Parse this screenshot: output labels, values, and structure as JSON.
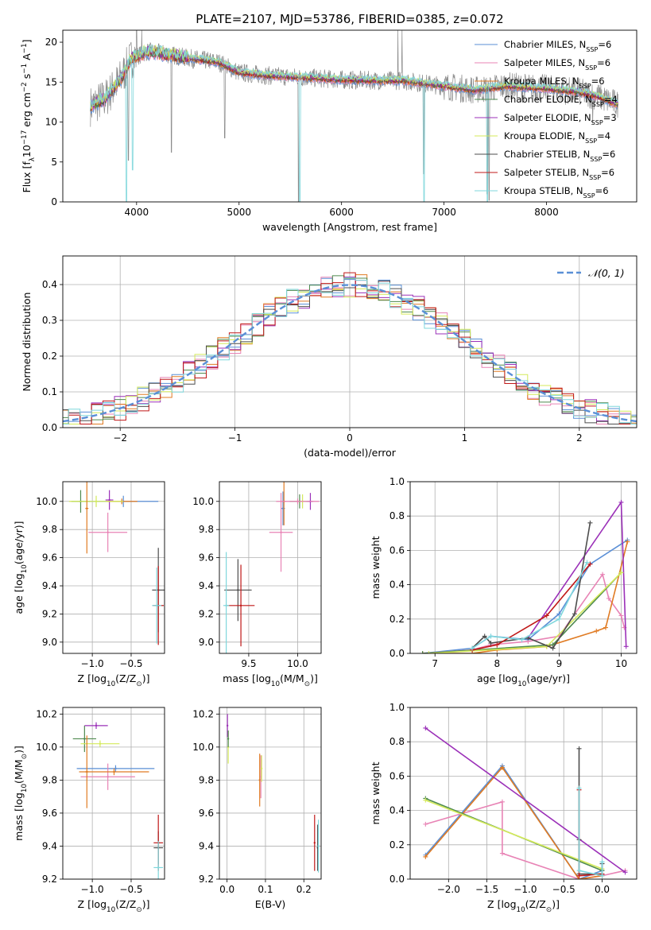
{
  "figure_title": "PLATE=2107, MJD=53786, FIBERID=0385, z=0.072",
  "series": [
    {
      "name": "Chabrier MILES, N",
      "sub": "SSP",
      "tail": "=6",
      "color": "#5a8fd6"
    },
    {
      "name": "Salpeter MILES, N",
      "sub": "SSP",
      "tail": "=6",
      "color": "#e883b5"
    },
    {
      "name": "Kroupa MILES, N",
      "sub": "SSP",
      "tail": "=6",
      "color": "#e07b23"
    },
    {
      "name": "Chabrier ELODIE, N",
      "sub": "SSP",
      "tail": "=4",
      "color": "#4f8a4f"
    },
    {
      "name": "Salpeter ELODIE, N",
      "sub": "SSP",
      "tail": "=3",
      "color": "#9b30b8"
    },
    {
      "name": "Kroupa ELODIE, N",
      "sub": "SSP",
      "tail": "=4",
      "color": "#d4ea5a"
    },
    {
      "name": "Chabrier STELIB, N",
      "sub": "SSP",
      "tail": "=6",
      "color": "#4d4d4d"
    },
    {
      "name": "Salpeter STELIB, N",
      "sub": "SSP",
      "tail": "=6",
      "color": "#c01818"
    },
    {
      "name": "Kroupa STELIB, N",
      "sub": "SSP",
      "tail": "=6",
      "color": "#7fd7dc"
    }
  ],
  "data_color": "#8a8a8a",
  "chart_data": [
    {
      "type": "line",
      "id": "spectrum",
      "xlabel": "wavelength [Angstrom, rest frame]",
      "ylabel": "Flux [f",
      "ylabel_sub": "λ",
      "ylabel_mid": "10",
      "ylabel_sup": "−17",
      "ylabel_tail": " erg cm",
      "ylabel_sup2": "−2",
      "ylabel_tail2": " s",
      "ylabel_sup3": "−1",
      "ylabel_tail3": " A",
      "ylabel_sup4": "−1",
      "ylabel_end": "]",
      "xlim": [
        3280,
        8880
      ],
      "ylim": [
        0,
        21.5
      ],
      "xticks": [
        4000,
        5000,
        6000,
        7000,
        8000
      ],
      "yticks": [
        0,
        5,
        10,
        15,
        20
      ],
      "continuum": [
        [
          3550,
          12.0
        ],
        [
          3700,
          13.0
        ],
        [
          3850,
          15.5
        ],
        [
          3950,
          18.0
        ],
        [
          4100,
          18.8
        ],
        [
          4300,
          18.5
        ],
        [
          4500,
          18.0
        ],
        [
          4800,
          17.5
        ],
        [
          5000,
          16.2
        ],
        [
          5300,
          15.8
        ],
        [
          5600,
          15.6
        ],
        [
          6000,
          15.3
        ],
        [
          6300,
          15.2
        ],
        [
          6600,
          15.2
        ],
        [
          7000,
          14.5
        ],
        [
          7300,
          14.0
        ],
        [
          7600,
          14.5
        ],
        [
          8000,
          14.2
        ],
        [
          8300,
          13.8
        ],
        [
          8500,
          13.2
        ],
        [
          8700,
          12.2
        ]
      ],
      "data_spikes": [
        [
          3920,
          5.2
        ],
        [
          4000,
          21.5
        ],
        [
          4050,
          21.5
        ],
        [
          4340,
          6.2
        ],
        [
          4860,
          8.0
        ],
        [
          5580,
          0
        ],
        [
          6550,
          21.5
        ],
        [
          6590,
          21.5
        ],
        [
          6800,
          3.5
        ],
        [
          7420,
          1.0
        ],
        [
          7440,
          0.2
        ],
        [
          8450,
          9.8
        ]
      ],
      "model_spikes": [
        [
          3900,
          0
        ],
        [
          3960,
          4.0
        ],
        [
          5595,
          0
        ],
        [
          6805,
          0
        ],
        [
          7425,
          0
        ]
      ]
    },
    {
      "type": "histogram",
      "id": "residuals",
      "xlabel": "(data-model)/error",
      "ylabel": "Normed distribution",
      "xlim": [
        -2.5,
        2.5
      ],
      "ylim": [
        0,
        0.48
      ],
      "xticks": [
        -2,
        -1,
        0,
        1,
        2
      ],
      "yticks": [
        0.0,
        0.1,
        0.2,
        0.3,
        0.4
      ],
      "bin_width": 0.1,
      "reference_label": "𝒩(0, 1)",
      "reference_color": "#5a8fd6"
    },
    {
      "type": "scatter",
      "id": "age-vs-Z",
      "xlabel": "Z [log",
      "xlabel_sub": "10",
      "xlabel_tail": "(Z/Z",
      "xlabel_sub2": "⊙",
      "xlabel_end": ")]",
      "ylabel": "age  [log",
      "ylabel_sub": "10",
      "ylabel_tail": "(age/yr)]",
      "xlim": [
        -1.38,
        -0.07
      ],
      "ylim": [
        8.92,
        10.14
      ],
      "xticks": [
        -1.0,
        -0.5
      ],
      "yticks": [
        9.0,
        9.2,
        9.4,
        9.6,
        9.8,
        10.0
      ],
      "points": [
        {
          "x": -0.6,
          "y": 10.0,
          "xerr": 0.45,
          "yerr": 0.04,
          "series": 0
        },
        {
          "x": -0.8,
          "y": 9.78,
          "xerr": 0.25,
          "yerr": 0.14,
          "series": 1
        },
        {
          "x": -0.62,
          "y": 10.0,
          "xerr": 0.2,
          "yerr": 0.02,
          "series": 2
        },
        {
          "x": -1.15,
          "y": 10.0,
          "xerr": 0.12,
          "yerr": 0.08,
          "series": 3
        },
        {
          "x": -0.78,
          "y": 10.01,
          "xerr": 0.05,
          "yerr": 0.07,
          "series": 4
        },
        {
          "x": -0.95,
          "y": 10.0,
          "xerr": 0.35,
          "yerr": 0.04,
          "series": 5
        },
        {
          "x": -0.15,
          "y": 9.37,
          "xerr": 0.08,
          "yerr": 0.3,
          "series": 6
        },
        {
          "x": -0.15,
          "y": 9.26,
          "xerr": 0.07,
          "yerr": 0.28,
          "series": 7
        },
        {
          "x": -0.17,
          "y": 9.26,
          "xerr": 0.06,
          "yerr": 0.27,
          "series": 8
        },
        {
          "x": -1.07,
          "y": 9.95,
          "xerr": 0.02,
          "yerr": 0.32,
          "series": 2
        }
      ]
    },
    {
      "type": "scatter",
      "id": "age-vs-mass",
      "xlabel": "mass [log",
      "xlabel_sub": "10",
      "xlabel_tail": "(M/M",
      "xlabel_sub2": "⊙",
      "xlabel_end": ")]",
      "xlim": [
        9.2,
        10.24
      ],
      "ylim": [
        8.92,
        10.14
      ],
      "xticks": [
        9.5,
        10.0
      ],
      "yticks": [
        9.0,
        9.2,
        9.4,
        9.6,
        9.8,
        10.0
      ],
      "points": [
        {
          "x": 9.85,
          "y": 9.95,
          "xerr": 0.02,
          "yerr": 0.12,
          "series": 0
        },
        {
          "x": 9.83,
          "y": 9.78,
          "xerr": 0.12,
          "yerr": 0.28,
          "series": 1
        },
        {
          "x": 9.86,
          "y": 10.0,
          "xerr": 0.02,
          "yerr": 0.17,
          "series": 2
        },
        {
          "x": 10.02,
          "y": 10.0,
          "xerr": 0.1,
          "yerr": 0.05,
          "series": 3
        },
        {
          "x": 10.13,
          "y": 10.0,
          "xerr": 0.03,
          "yerr": 0.06,
          "series": 4
        },
        {
          "x": 10.05,
          "y": 10.0,
          "xerr": 0.04,
          "yerr": 0.05,
          "series": 5
        },
        {
          "x": 9.39,
          "y": 9.37,
          "xerr": 0.14,
          "yerr": 0.22,
          "series": 6
        },
        {
          "x": 9.42,
          "y": 9.26,
          "xerr": 0.14,
          "yerr": 0.29,
          "series": 7
        },
        {
          "x": 9.27,
          "y": 9.26,
          "xerr": 0.03,
          "yerr": 0.38,
          "series": 8
        },
        {
          "x": 10.0,
          "y": 10.0,
          "xerr": 0.22,
          "yerr": 0.02,
          "series": 1
        }
      ]
    },
    {
      "type": "line",
      "id": "mass-weight-age",
      "xlabel": "age  [log",
      "xlabel_sub": "10",
      "xlabel_tail": "(age/yr)]",
      "ylabel": "mass weight",
      "xlim": [
        6.6,
        10.25
      ],
      "ylim": [
        0,
        1.0
      ],
      "xticks": [
        7,
        8,
        9,
        10
      ],
      "yticks": [
        0.0,
        0.2,
        0.4,
        0.6,
        0.8,
        1.0
      ],
      "lines": [
        {
          "series": 0,
          "x": [
            6.8,
            7.6,
            7.9,
            8.5,
            9.0,
            9.5,
            10.1
          ],
          "y": [
            0.0,
            0.03,
            0.1,
            0.08,
            0.23,
            0.52,
            0.66
          ]
        },
        {
          "series": 1,
          "x": [
            6.8,
            7.6,
            7.9,
            8.5,
            9.0,
            9.7,
            9.8,
            10.0,
            10.05
          ],
          "y": [
            0.0,
            0.02,
            0.05,
            0.07,
            0.1,
            0.46,
            0.32,
            0.22,
            0.15
          ]
        },
        {
          "series": 2,
          "x": [
            6.8,
            7.6,
            8.0,
            8.8,
            9.6,
            9.75,
            10.1
          ],
          "y": [
            0.0,
            0.0,
            0.02,
            0.04,
            0.13,
            0.15,
            0.65
          ]
        },
        {
          "series": 3,
          "x": [
            6.8,
            8.9,
            10.0
          ],
          "y": [
            0.0,
            0.05,
            0.47
          ]
        },
        {
          "series": 4,
          "x": [
            8.5,
            10.0,
            10.08
          ],
          "y": [
            0.09,
            0.88,
            0.04
          ]
        },
        {
          "series": 5,
          "x": [
            6.9,
            8.8,
            10.0
          ],
          "y": [
            0.0,
            0.04,
            0.47
          ]
        },
        {
          "series": 6,
          "x": [
            7.6,
            7.8,
            7.9,
            8.5,
            8.9,
            9.25,
            9.5
          ],
          "y": [
            0.03,
            0.1,
            0.06,
            0.09,
            0.03,
            0.23,
            0.76
          ]
        },
        {
          "series": 7,
          "x": [
            7.6,
            8.0,
            8.8,
            9.5
          ],
          "y": [
            0.02,
            0.05,
            0.22,
            0.52
          ]
        },
        {
          "series": 8,
          "x": [
            7.6,
            7.9,
            8.4,
            9.0,
            9.45
          ],
          "y": [
            0.03,
            0.1,
            0.08,
            0.2,
            0.53
          ]
        }
      ]
    },
    {
      "type": "scatter",
      "id": "mass-vs-Z",
      "xlabel": "Z [log",
      "xlabel_sub": "10",
      "xlabel_tail": "(Z/Z",
      "xlabel_sub2": "⊙",
      "xlabel_end": ")]",
      "ylabel": "mass [log",
      "ylabel_sub": "10",
      "ylabel_tail": "(M/M",
      "ylabel_sub2": "⊙",
      "ylabel_end": ")]",
      "xlim": [
        -1.38,
        -0.07
      ],
      "ylim": [
        9.2,
        10.24
      ],
      "xticks": [
        -1.0,
        -0.5
      ],
      "yticks": [
        9.2,
        9.4,
        9.6,
        9.8,
        10.0,
        10.2
      ],
      "points": [
        {
          "x": -0.7,
          "y": 9.87,
          "xerr": 0.5,
          "yerr": 0.02,
          "series": 0
        },
        {
          "x": -0.8,
          "y": 9.82,
          "xerr": 0.35,
          "yerr": 0.08,
          "series": 1
        },
        {
          "x": -0.72,
          "y": 9.85,
          "xerr": 0.45,
          "yerr": 0.02,
          "series": 2
        },
        {
          "x": -1.1,
          "y": 10.05,
          "xerr": 0.15,
          "yerr": 0.08,
          "series": 3
        },
        {
          "x": -0.95,
          "y": 10.13,
          "xerr": 0.15,
          "yerr": 0.02,
          "series": 4
        },
        {
          "x": -0.9,
          "y": 10.02,
          "xerr": 0.25,
          "yerr": 0.02,
          "series": 5
        },
        {
          "x": -0.15,
          "y": 9.39,
          "xerr": 0.06,
          "yerr": 0.1,
          "series": 6
        },
        {
          "x": -0.15,
          "y": 9.42,
          "xerr": 0.06,
          "yerr": 0.17,
          "series": 7
        },
        {
          "x": -0.15,
          "y": 9.27,
          "xerr": 0.06,
          "yerr": 0.16,
          "series": 8
        },
        {
          "x": -1.07,
          "y": 9.85,
          "xerr": 0.02,
          "yerr": 0.22,
          "series": 2
        }
      ]
    },
    {
      "type": "scatter",
      "id": "mass-vs-ebv",
      "xlabel": "E(B-V)",
      "xlim": [
        -0.02,
        0.245
      ],
      "ylim": [
        9.2,
        10.24
      ],
      "xticks": [
        0.0,
        0.1,
        0.2
      ],
      "yticks": [
        9.2,
        9.4,
        9.6,
        9.8,
        10.0,
        10.2
      ],
      "points": [
        {
          "x": 0.085,
          "y": 9.8,
          "xerr": 0,
          "yerr": 0.16,
          "series": 2
        },
        {
          "x": 0.088,
          "y": 9.82,
          "xerr": 0,
          "yerr": 0.13,
          "series": 1
        },
        {
          "x": 0.09,
          "y": 9.87,
          "xerr": 0,
          "yerr": 0.08,
          "series": 5
        },
        {
          "x": 0.001,
          "y": 10.13,
          "xerr": 0,
          "yerr": 0.07,
          "series": 4
        },
        {
          "x": 0.003,
          "y": 10.0,
          "xerr": 0,
          "yerr": 0.1,
          "series": 5
        },
        {
          "x": 0.003,
          "y": 10.05,
          "xerr": 0,
          "yerr": 0.05,
          "series": 3
        },
        {
          "x": 0.228,
          "y": 9.42,
          "xerr": 0,
          "yerr": 0.17,
          "series": 7
        },
        {
          "x": 0.236,
          "y": 9.39,
          "xerr": 0,
          "yerr": 0.14,
          "series": 6
        },
        {
          "x": 0.238,
          "y": 9.4,
          "xerr": 0,
          "yerr": 0.16,
          "series": 8
        }
      ]
    },
    {
      "type": "line",
      "id": "mass-weight-Z",
      "xlabel": "Z [log",
      "xlabel_sub": "10",
      "xlabel_tail": "(Z/Z",
      "xlabel_sub2": "⊙",
      "xlabel_end": ")]",
      "ylabel": "mass weight",
      "xlim": [
        -2.5,
        0.45
      ],
      "ylim": [
        0,
        1.0
      ],
      "xticks": [
        -2.0,
        -1.5,
        -1.0,
        -0.5,
        0.0
      ],
      "yticks": [
        0.0,
        0.2,
        0.4,
        0.6,
        0.8,
        1.0
      ],
      "lines": [
        {
          "series": 0,
          "x": [
            -2.3,
            -1.3,
            -0.3,
            0.0,
            0.0
          ],
          "y": [
            0.14,
            0.66,
            0.0,
            0.05,
            0.1
          ]
        },
        {
          "series": 1,
          "x": [
            -2.3,
            -1.3,
            -1.3,
            -0.3,
            0.0,
            0.3
          ],
          "y": [
            0.32,
            0.45,
            0.15,
            0.0,
            0.02,
            0.05
          ]
        },
        {
          "series": 2,
          "x": [
            -2.3,
            -1.3,
            -0.3,
            0.0
          ],
          "y": [
            0.13,
            0.65,
            0.0,
            0.02
          ]
        },
        {
          "series": 3,
          "x": [
            -2.3,
            0.0
          ],
          "y": [
            0.47,
            0.05
          ]
        },
        {
          "series": 4,
          "x": [
            -2.3,
            0.3
          ],
          "y": [
            0.88,
            0.04
          ]
        },
        {
          "series": 5,
          "x": [
            -2.3,
            0.0
          ],
          "y": [
            0.46,
            0.06
          ]
        },
        {
          "series": 6,
          "x": [
            -0.3,
            -0.3,
            -0.3,
            0.0,
            0.0
          ],
          "y": [
            0.76,
            0.23,
            0.03,
            0.03,
            0.09
          ]
        },
        {
          "series": 7,
          "x": [
            -0.3,
            -0.3,
            0.0
          ],
          "y": [
            0.52,
            0.02,
            0.03
          ]
        },
        {
          "series": 8,
          "x": [
            -0.3,
            -0.3,
            0.0,
            0.0
          ],
          "y": [
            0.53,
            0.05,
            0.02,
            0.1
          ]
        }
      ]
    }
  ]
}
